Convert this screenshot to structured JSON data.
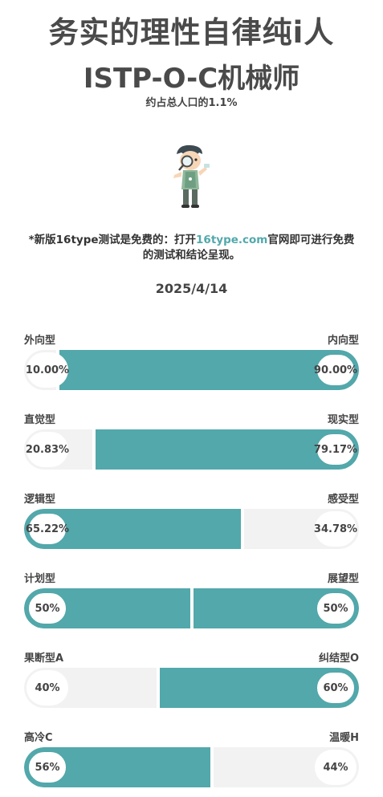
{
  "header": {
    "title": "务实的理性自律纯i人",
    "type_code": "ISTP-O-C机械师",
    "population": "约占总人口的1.1%"
  },
  "avatar": {
    "icon": "cartoon-character-with-magnifier-icon"
  },
  "note": {
    "prefix": "*新版16type测试是免费的：打开",
    "link": "16type.com",
    "suffix": "官网即可进行免费的测试和结论呈现。"
  },
  "date": "2025/4/14",
  "colors": {
    "accent": "#52a8ab",
    "track": "#f2f2f2"
  },
  "dimensions": [
    {
      "left_label": "外向型",
      "right_label": "内向型",
      "left_value": "10.00%",
      "right_value": "90.00%",
      "left_fraction": 0.1,
      "dominant": "right"
    },
    {
      "left_label": "直觉型",
      "right_label": "现实型",
      "left_value": "20.83%",
      "right_value": "79.17%",
      "left_fraction": 0.2083,
      "dominant": "right"
    },
    {
      "left_label": "逻辑型",
      "right_label": "感受型",
      "left_value": "65.22%",
      "right_value": "34.78%",
      "left_fraction": 0.6522,
      "dominant": "left"
    },
    {
      "left_label": "计划型",
      "right_label": "展望型",
      "left_value": "50%",
      "right_value": "50%",
      "left_fraction": 0.5,
      "dominant": "both"
    },
    {
      "left_label": "果断型A",
      "right_label": "纠结型O",
      "left_value": "40%",
      "right_value": "60%",
      "left_fraction": 0.4,
      "dominant": "right"
    },
    {
      "left_label": "高冷C",
      "right_label": "温暖H",
      "left_value": "56%",
      "right_value": "44%",
      "left_fraction": 0.56,
      "dominant": "left"
    }
  ]
}
